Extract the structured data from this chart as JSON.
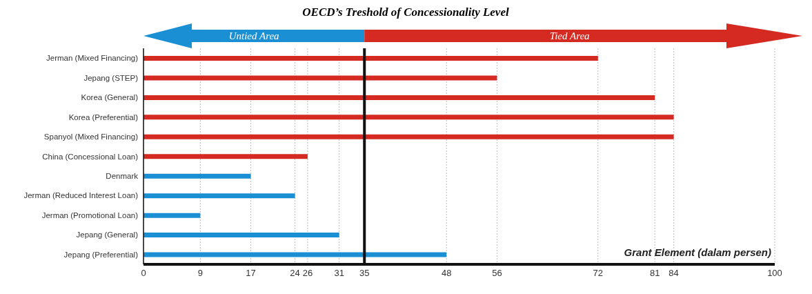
{
  "chart_data": {
    "type": "bar",
    "orientation": "horizontal",
    "title": "OECD’s Treshold of Concessionality Level",
    "xlabel": "Grant Element (dalam persen)",
    "categories": [
      "Jerman (Mixed Financing)",
      "Jepang (STEP)",
      "Korea (General)",
      "Korea (Preferential)",
      "Spanyol (Mixed Financing)",
      "China (Concessional Loan)",
      "Denmark",
      "Jerman (Reduced Interest Loan)",
      "Jerman (Promotional Loan)",
      "Jepang (General)",
      "Jepang (Preferential)"
    ],
    "values": [
      72,
      56,
      81,
      84,
      84,
      26,
      17,
      24,
      9,
      31,
      48
    ],
    "colors": [
      "#d42a22",
      "#d42a22",
      "#d42a22",
      "#d42a22",
      "#d42a22",
      "#d42a22",
      "#1a8fd4",
      "#1a8fd4",
      "#1a8fd4",
      "#1a8fd4",
      "#1a8fd4"
    ],
    "xlim": [
      0,
      100
    ],
    "xticks": [
      0,
      9,
      17,
      24,
      26,
      31,
      35,
      48,
      56,
      72,
      81,
      84,
      100
    ],
    "grid": "x",
    "legend": false,
    "ref_lines": [
      {
        "axis": "x",
        "value": 35,
        "color": "#111111"
      }
    ],
    "annotations": [
      "Untied Area",
      "Tied Area"
    ]
  }
}
